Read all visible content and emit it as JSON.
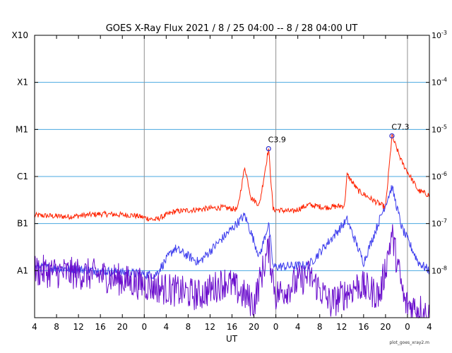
{
  "chart_data": {
    "type": "line",
    "title": "GOES X-Ray Flux   2021 /  8 / 25   04:00 --  8 / 28   04:00   UT",
    "xlabel": "UT",
    "footer": "plot_goes_xray2.m",
    "x_range": [
      "2021-08-25 04:00",
      "2021-08-28 04:00"
    ],
    "y_scale": "log",
    "ylim": [
      1e-09,
      0.001
    ],
    "grid": true,
    "x_ticks": [
      "4",
      "8",
      "12",
      "16",
      "20",
      "0",
      "4",
      "8",
      "12",
      "16",
      "20",
      "0",
      "4",
      "8",
      "12",
      "16",
      "20",
      "0",
      "4"
    ],
    "day_boundaries": [
      "2021-08-26 00:00",
      "2021-08-27 00:00",
      "2021-08-28 00:00"
    ],
    "left_class_labels": [
      "X10",
      "X1",
      "M1",
      "C1",
      "B1",
      "A1"
    ],
    "right_tick_labels": [
      {
        "base": "10",
        "exp": "-3"
      },
      {
        "base": "10",
        "exp": "-4"
      },
      {
        "base": "10",
        "exp": "-5"
      },
      {
        "base": "10",
        "exp": "-6"
      },
      {
        "base": "10",
        "exp": "-7"
      },
      {
        "base": "10",
        "exp": "-8"
      }
    ],
    "annotations": [
      {
        "label": "C3.9",
        "x": "2021-08-26 22:40",
        "y": 3.9e-06
      },
      {
        "label": "C7.3",
        "x": "2021-08-27 21:10",
        "y": 7.3e-06
      }
    ],
    "series": [
      {
        "color": "#ff2200",
        "x": [
          "2021-08-25 04:00",
          "2021-08-25 10:00",
          "2021-08-25 16:00",
          "2021-08-25 22:00",
          "2021-08-26 02:00",
          "2021-08-26 05:30",
          "2021-08-26 10:00",
          "2021-08-26 14:00",
          "2021-08-26 17:00",
          "2021-08-26 18:20",
          "2021-08-26 19:30",
          "2021-08-26 21:00",
          "2021-08-26 22:40",
          "2021-08-26 23:30",
          "2021-08-27 03:00",
          "2021-08-27 06:00",
          "2021-08-27 09:00",
          "2021-08-27 12:30",
          "2021-08-27 13:00",
          "2021-08-27 15:00",
          "2021-08-27 18:00",
          "2021-08-27 20:00",
          "2021-08-27 21:10",
          "2021-08-27 23:00",
          "2021-08-28 02:00",
          "2021-08-28 04:00"
        ],
        "y": [
          1.5e-07,
          1.4e-07,
          1.6e-07,
          1.5e-07,
          1.2e-07,
          1.8e-07,
          2e-07,
          2.2e-07,
          2e-07,
          1.6e-06,
          3.5e-07,
          2.5e-07,
          3.9e-06,
          2e-07,
          1.8e-07,
          2.5e-07,
          2.2e-07,
          2.4e-07,
          1.1e-06,
          5e-07,
          3e-07,
          2.2e-07,
          7.3e-06,
          2e-06,
          5e-07,
          4e-07
        ]
      },
      {
        "color": "#4040ee",
        "x": [
          "2021-08-25 04:00",
          "2021-08-25 16:00",
          "2021-08-26 02:00",
          "2021-08-26 05:30",
          "2021-08-26 10:00",
          "2021-08-26 18:20",
          "2021-08-26 21:00",
          "2021-08-26 22:40",
          "2021-08-26 23:30",
          "2021-08-27 06:00",
          "2021-08-27 13:00",
          "2021-08-27 16:00",
          "2021-08-27 21:10",
          "2021-08-27 23:00",
          "2021-08-28 02:00",
          "2021-08-28 04:00"
        ],
        "y": [
          1.2e-08,
          1e-08,
          8e-09,
          3e-08,
          1.5e-08,
          1.5e-07,
          2e-08,
          1e-07,
          1.2e-08,
          1.3e-08,
          1.2e-07,
          1.5e-08,
          6e-07,
          8e-08,
          1.5e-08,
          1e-08
        ]
      },
      {
        "color": "#6a0dcc",
        "x": [
          "2021-08-25 04:00",
          "2021-08-25 16:00",
          "2021-08-26 00:00",
          "2021-08-26 10:00",
          "2021-08-26 15:00",
          "2021-08-26 20:00",
          "2021-08-26 22:40",
          "2021-08-27 00:00",
          "2021-08-27 06:00",
          "2021-08-27 10:00",
          "2021-08-27 15:00",
          "2021-08-27 19:00",
          "2021-08-27 21:10",
          "2021-08-27 23:30",
          "2021-08-28 02:30",
          "2021-08-28 04:00"
        ],
        "y": [
          1e-08,
          8e-09,
          5e-09,
          3e-09,
          6e-09,
          2e-09,
          3e-08,
          3e-09,
          8e-09,
          2e-09,
          5e-09,
          3e-09,
          6e-08,
          2e-09,
          1.5e-09,
          1e-09
        ]
      }
    ]
  }
}
